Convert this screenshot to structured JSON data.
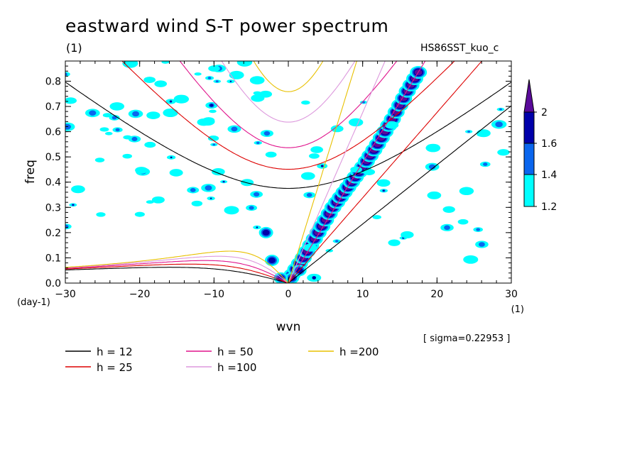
{
  "figure": {
    "title": "eastward wind S-T power spectrum",
    "subtitle_left": "(1)",
    "subtitle_right": "HS86SST_kuo_c",
    "sigma_note": "[ sigma=0.22953 ]"
  },
  "chart_data": {
    "type": "heatmap",
    "title": "eastward wind S-T power spectrum",
    "xlabel": "wvn",
    "x_unit": "(1)",
    "ylabel": "freq",
    "y_unit": "(day-1)",
    "xlim": [
      -30,
      30
    ],
    "ylim": [
      0,
      0.88
    ],
    "x_ticks": [
      -30,
      -20,
      -10,
      0,
      10,
      20,
      30
    ],
    "y_ticks": [
      0.0,
      0.1,
      0.2,
      0.3,
      0.4,
      0.5,
      0.6,
      0.7,
      0.8
    ],
    "colorbar": {
      "levels": [
        1.2,
        1.4,
        1.6,
        2
      ],
      "colors": [
        "#00ffff",
        "#0a66ee",
        "#0000aa",
        "#5a0a9a"
      ],
      "extend": "max"
    },
    "dispersion_curves": [
      {
        "name": "h = 12",
        "h": 12,
        "color": "#000000"
      },
      {
        "name": "h = 25",
        "h": 25,
        "color": "#dd0000"
      },
      {
        "name": "h = 50",
        "h": 50,
        "color": "#e0148c"
      },
      {
        "name": "h =100",
        "h": 100,
        "color": "#dd99dd"
      },
      {
        "name": "h =200",
        "h": 200,
        "color": "#e8c000"
      }
    ],
    "kelvin_ridge": {
      "description_points": [
        [
          0,
          0.01
        ],
        [
          2,
          0.1
        ],
        [
          4,
          0.2
        ],
        [
          6,
          0.3
        ],
        [
          8,
          0.38
        ],
        [
          10,
          0.46
        ],
        [
          12,
          0.55
        ],
        [
          14,
          0.65
        ],
        [
          16,
          0.76
        ],
        [
          18,
          0.86
        ]
      ]
    },
    "sigma": 0.22953
  }
}
